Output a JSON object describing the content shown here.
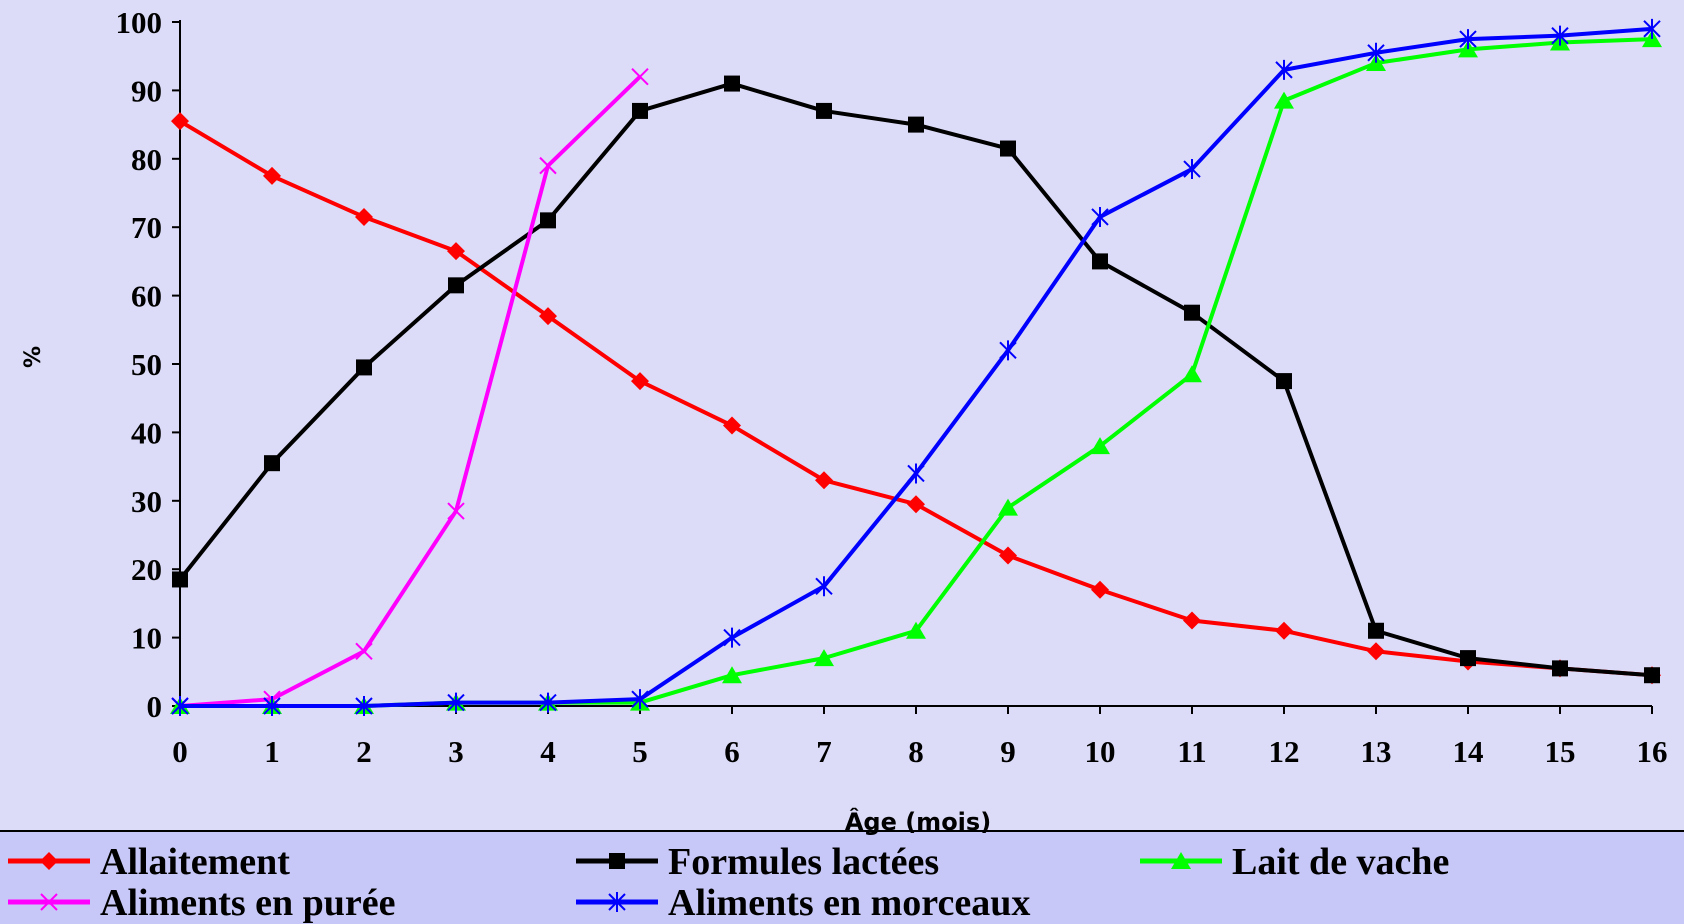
{
  "chart_data": {
    "type": "line",
    "title": "",
    "xlabel": "Âge (mois)",
    "ylabel": "%",
    "x": [
      0,
      1,
      2,
      3,
      4,
      5,
      6,
      7,
      8,
      9,
      10,
      11,
      12,
      13,
      14,
      15,
      16
    ],
    "xlim": [
      0,
      16
    ],
    "ylim": [
      0,
      100
    ],
    "y_ticks": [
      0,
      10,
      20,
      30,
      40,
      50,
      60,
      70,
      80,
      90,
      100
    ],
    "grid": false,
    "legend_position": "bottom",
    "background_color": "#dcdcf8",
    "legend_background_color": "#c8c8f8",
    "series": [
      {
        "name": "Allaitement",
        "color": "#ff0000",
        "marker": "diamond",
        "x": [
          0,
          1,
          2,
          3,
          4,
          5,
          6,
          7,
          8,
          9,
          10,
          11,
          12,
          13,
          14,
          15,
          16
        ],
        "values": [
          85.5,
          77.5,
          71.5,
          66.5,
          57,
          47.5,
          41,
          33,
          29.5,
          22,
          17,
          12.5,
          11,
          8,
          6.5,
          5.5,
          4.5
        ]
      },
      {
        "name": "Formules lactées",
        "color": "#000000",
        "marker": "square",
        "x": [
          0,
          1,
          2,
          3,
          4,
          5,
          6,
          7,
          8,
          9,
          10,
          11,
          12,
          13,
          14,
          15,
          16
        ],
        "values": [
          18.5,
          35.5,
          49.5,
          61.5,
          71,
          87,
          91,
          87,
          85,
          81.5,
          65,
          57.5,
          47.5,
          11,
          7,
          5.5,
          4.5
        ]
      },
      {
        "name": "Lait de vache",
        "color": "#00ff00",
        "marker": "triangle",
        "x": [
          0,
          1,
          2,
          3,
          4,
          5,
          6,
          7,
          8,
          9,
          10,
          11,
          12,
          13,
          14,
          15,
          16
        ],
        "values": [
          0,
          0,
          0,
          0.5,
          0.5,
          0.5,
          4.5,
          7,
          11,
          29,
          38,
          48.5,
          88.5,
          94,
          96,
          97,
          97.5
        ]
      },
      {
        "name": "Aliments en purée",
        "color": "#ff00ff",
        "marker": "x",
        "x": [
          0,
          1,
          2,
          3,
          4,
          5
        ],
        "values": [
          0,
          1,
          8,
          28.5,
          79,
          92
        ]
      },
      {
        "name": "Aliments en morceaux",
        "color": "#0000ff",
        "marker": "asterisk",
        "x": [
          0,
          1,
          2,
          3,
          4,
          5,
          6,
          7,
          8,
          9,
          10,
          11,
          12,
          13,
          14,
          15,
          16
        ],
        "values": [
          0,
          0,
          0,
          0.5,
          0.5,
          1,
          10,
          17.5,
          34,
          52,
          71.5,
          78.5,
          93,
          95.5,
          97.5,
          98,
          99
        ]
      }
    ]
  }
}
